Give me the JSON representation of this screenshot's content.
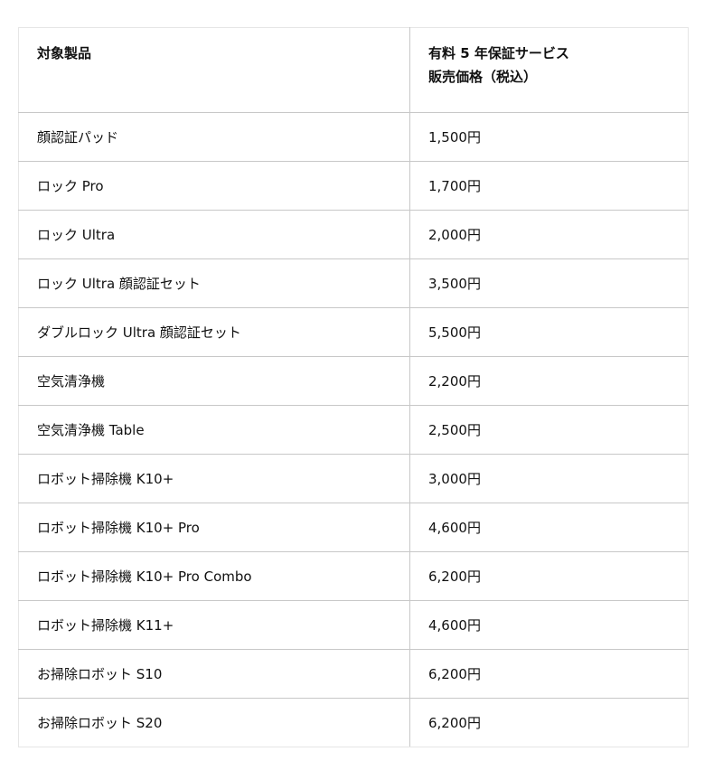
{
  "table": {
    "headers": {
      "product": "対象製品",
      "price_line1": "有料 5 年保証サービス",
      "price_line2": "販売価格（税込）"
    },
    "rows": [
      {
        "product": "顔認証パッド",
        "price": "1,500円"
      },
      {
        "product": "ロック Pro",
        "price": "1,700円"
      },
      {
        "product": "ロック Ultra",
        "price": "2,000円"
      },
      {
        "product": "ロック Ultra 顔認証セット",
        "price": "3,500円"
      },
      {
        "product": "ダブルロック Ultra 顔認証セット",
        "price": "5,500円"
      },
      {
        "product": "空気清浄機",
        "price": "2,200円"
      },
      {
        "product": "空気清浄機 Table",
        "price": "2,500円"
      },
      {
        "product": "ロボット掃除機 K10+",
        "price": "3,000円"
      },
      {
        "product": "ロボット掃除機 K10+ Pro",
        "price": "4,600円"
      },
      {
        "product": "ロボット掃除機 K10+ Pro Combo",
        "price": "6,200円"
      },
      {
        "product": "ロボット掃除機 K11+",
        "price": "4,600円"
      },
      {
        "product": "お掃除ロボット S10",
        "price": "6,200円"
      },
      {
        "product": "お掃除ロボット S20",
        "price": "6,200円"
      }
    ]
  }
}
